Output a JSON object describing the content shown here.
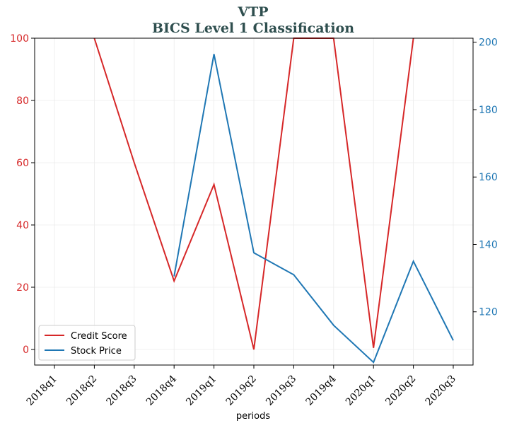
{
  "chart_data": {
    "type": "line",
    "title": "VTP",
    "subtitle": "BICS Level 1 Classification",
    "xlabel": "periods",
    "categories": [
      "2018q1",
      "2018q2",
      "2018q3",
      "2018q4",
      "2019q1",
      "2019q2",
      "2019q3",
      "2019q4",
      "2020q1",
      "2020q2",
      "2020q3"
    ],
    "left_axis": {
      "ylim": [
        -5,
        100
      ],
      "ticks": [
        0,
        20,
        40,
        60,
        80,
        100
      ],
      "color": "#d62728"
    },
    "right_axis": {
      "ylim": [
        104.2,
        201.2
      ],
      "ticks": [
        120,
        140,
        160,
        180,
        200
      ],
      "color": "#1f77b4"
    },
    "grid": true,
    "legend_position": "lower-left",
    "series": [
      {
        "name": "Credit Score",
        "axis": "left",
        "color": "#d62728",
        "values": [
          null,
          100,
          60,
          22,
          53,
          0,
          100,
          100,
          0.5,
          100,
          null
        ]
      },
      {
        "name": "Stock Price",
        "axis": "right",
        "color": "#1f77b4",
        "values": [
          null,
          null,
          null,
          130.5,
          196.5,
          137.5,
          131.0,
          116.0,
          105.0,
          135.0,
          111.5
        ]
      }
    ]
  }
}
